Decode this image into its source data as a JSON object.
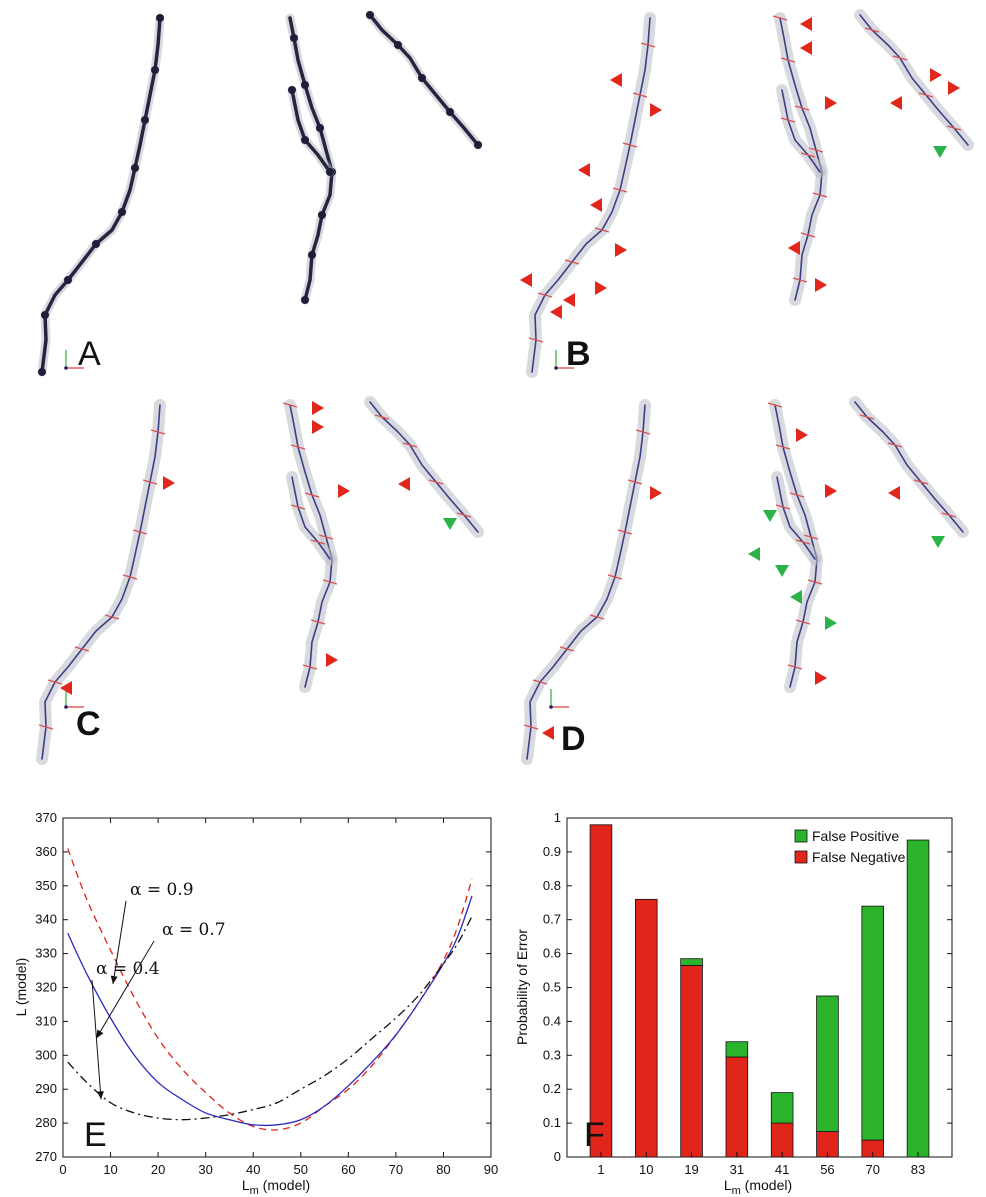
{
  "panels": {
    "a": {
      "letter": "A"
    },
    "b": {
      "letter": "B"
    },
    "c": {
      "letter": "C"
    },
    "d": {
      "letter": "D"
    },
    "e": {
      "letter": "E"
    },
    "f": {
      "letter": "F"
    }
  },
  "marker_colors": {
    "missed": "#e1261c",
    "spurious": "#2bb34a"
  },
  "axes_icon_colors": {
    "x": "#e04040",
    "y": "#30b030",
    "z": "#202060"
  },
  "chart_data": [
    {
      "panel": "E",
      "type": "line",
      "title": "",
      "xlabel": "L",
      "xlabel_subscript": "m",
      "xlabel_suffix": " (model)",
      "ylabel": "L (model)",
      "xlim": [
        0,
        90
      ],
      "ylim": [
        270,
        370
      ],
      "xticks": [
        0,
        10,
        20,
        30,
        40,
        50,
        60,
        70,
        80,
        90
      ],
      "yticks": [
        270,
        280,
        290,
        300,
        310,
        320,
        330,
        340,
        350,
        360,
        370
      ],
      "grid": false,
      "series": [
        {
          "name": "α = 0.9",
          "color": "#e0201a",
          "dash": "dashed",
          "x": [
            1,
            5,
            10,
            15,
            20,
            25,
            30,
            35,
            40,
            45,
            50,
            55,
            60,
            65,
            70,
            75,
            80,
            83,
            86
          ],
          "y": [
            361,
            346,
            331,
            317,
            305,
            296,
            289,
            283,
            279,
            278,
            280,
            285,
            290,
            297,
            306,
            316,
            328,
            338,
            352
          ]
        },
        {
          "name": "α = 0.7",
          "color": "#2a2ac0",
          "dash": "solid",
          "x": [
            1,
            5,
            10,
            15,
            20,
            25,
            30,
            35,
            40,
            45,
            50,
            55,
            60,
            65,
            70,
            75,
            80,
            83,
            86
          ],
          "y": [
            336,
            324,
            311,
            300,
            292,
            287,
            283,
            281,
            279.5,
            279.5,
            281,
            285,
            291,
            298,
            306,
            316,
            327,
            335,
            347
          ]
        },
        {
          "name": "α = 0.4",
          "color": "#111111",
          "dash": "dashdot",
          "x": [
            1,
            5,
            10,
            15,
            20,
            25,
            30,
            35,
            40,
            45,
            50,
            55,
            60,
            65,
            70,
            75,
            80,
            83,
            86
          ],
          "y": [
            298,
            292,
            286,
            283,
            281.5,
            281,
            281.5,
            282.5,
            284,
            286,
            290,
            294,
            299,
            305,
            311,
            318,
            327,
            333,
            341
          ]
        }
      ],
      "annotations": [
        {
          "label": "α = 0.9",
          "series": "α = 0.9",
          "point": [
            10.5,
            321
          ]
        },
        {
          "label": "α = 0.7",
          "series": "α = 0.7",
          "point": [
            7,
            305
          ]
        },
        {
          "label": "α = 0.4",
          "series": "α = 0.4",
          "point": [
            8,
            287
          ]
        }
      ]
    },
    {
      "panel": "F",
      "type": "bar",
      "stacked": true,
      "title": "",
      "xlabel": "L",
      "xlabel_subscript": "m",
      "xlabel_suffix": " (model)",
      "ylabel": "Probability of Error",
      "ylim": [
        0,
        1
      ],
      "yticks": [
        0,
        0.1,
        0.2,
        0.3,
        0.4,
        0.5,
        0.6,
        0.7,
        0.8,
        0.9,
        1
      ],
      "ytick_labels": [
        "0",
        "0.1",
        "0.2",
        "0.3",
        "0.4",
        "0.5",
        "0.6",
        "0.7",
        "0.8",
        "0.9",
        "1"
      ],
      "categories": [
        "1",
        "10",
        "19",
        "31",
        "41",
        "56",
        "70",
        "83"
      ],
      "grid": false,
      "legend_position": "top-right",
      "series": [
        {
          "name": "False Negative",
          "color": "#e0261b",
          "values": [
            0.98,
            0.76,
            0.565,
            0.295,
            0.1,
            0.075,
            0.05,
            0.0
          ]
        },
        {
          "name": "False Positive",
          "color": "#2bb42b",
          "values": [
            0.0,
            0.0,
            0.02,
            0.045,
            0.09,
            0.4,
            0.69,
            0.935
          ]
        }
      ],
      "legend_order": [
        "False Positive",
        "False Negative"
      ]
    }
  ]
}
